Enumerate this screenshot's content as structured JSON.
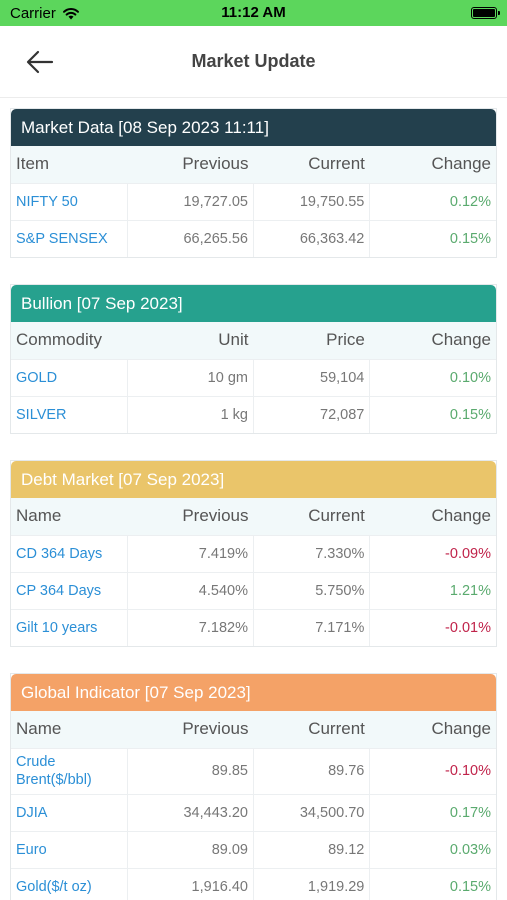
{
  "status_bar": {
    "carrier": "Carrier",
    "time": "11:12 AM"
  },
  "nav": {
    "title": "Market Update"
  },
  "market_data": {
    "title": "Market Data [08 Sep 2023 11:11]",
    "headers": [
      "Item",
      "Previous",
      "Current",
      "Change"
    ],
    "rows": [
      [
        "NIFTY 50",
        "19,727.05",
        "19,750.55",
        "0.12%"
      ],
      [
        "S&P SENSEX",
        "66,265.56",
        "66,363.42",
        "0.15%"
      ]
    ]
  },
  "bullion": {
    "title": "Bullion [07 Sep 2023]",
    "headers": [
      "Commodity",
      "Unit",
      "Price",
      "Change"
    ],
    "rows": [
      [
        "GOLD",
        "10 gm",
        "59,104",
        "0.10%"
      ],
      [
        "SILVER",
        "1 kg",
        "72,087",
        "0.15%"
      ]
    ]
  },
  "debt_market": {
    "title": "Debt Market [07 Sep 2023]",
    "headers": [
      "Name",
      "Previous",
      "Current",
      "Change"
    ],
    "rows": [
      [
        "CD 364 Days",
        "7.419%",
        "7.330%",
        "-0.09%"
      ],
      [
        "CP 364 Days",
        "4.540%",
        "5.750%",
        "1.21%"
      ],
      [
        "Gilt 10 years",
        "7.182%",
        "7.171%",
        "-0.01%"
      ]
    ]
  },
  "global_indicator": {
    "title": "Global Indicator [07 Sep 2023]",
    "headers": [
      "Name",
      "Previous",
      "Current",
      "Change"
    ],
    "rows": [
      [
        "Crude Brent($/bbl)",
        "89.85",
        "89.76",
        "-0.10%"
      ],
      [
        "DJIA",
        "34,443.20",
        "34,500.70",
        "0.17%"
      ],
      [
        "Euro",
        "89.09",
        "89.12",
        "0.03%"
      ],
      [
        "Gold($/t oz)",
        "1,916.40",
        "1,919.29",
        "0.15%"
      ]
    ]
  },
  "colors": {
    "positive": "#5aaa6e",
    "negative": "#c0234a",
    "link": "#2b8fd6"
  },
  "icons": {
    "back": "arrow-left-icon",
    "wifi": "wifi-icon",
    "battery": "battery-icon"
  }
}
